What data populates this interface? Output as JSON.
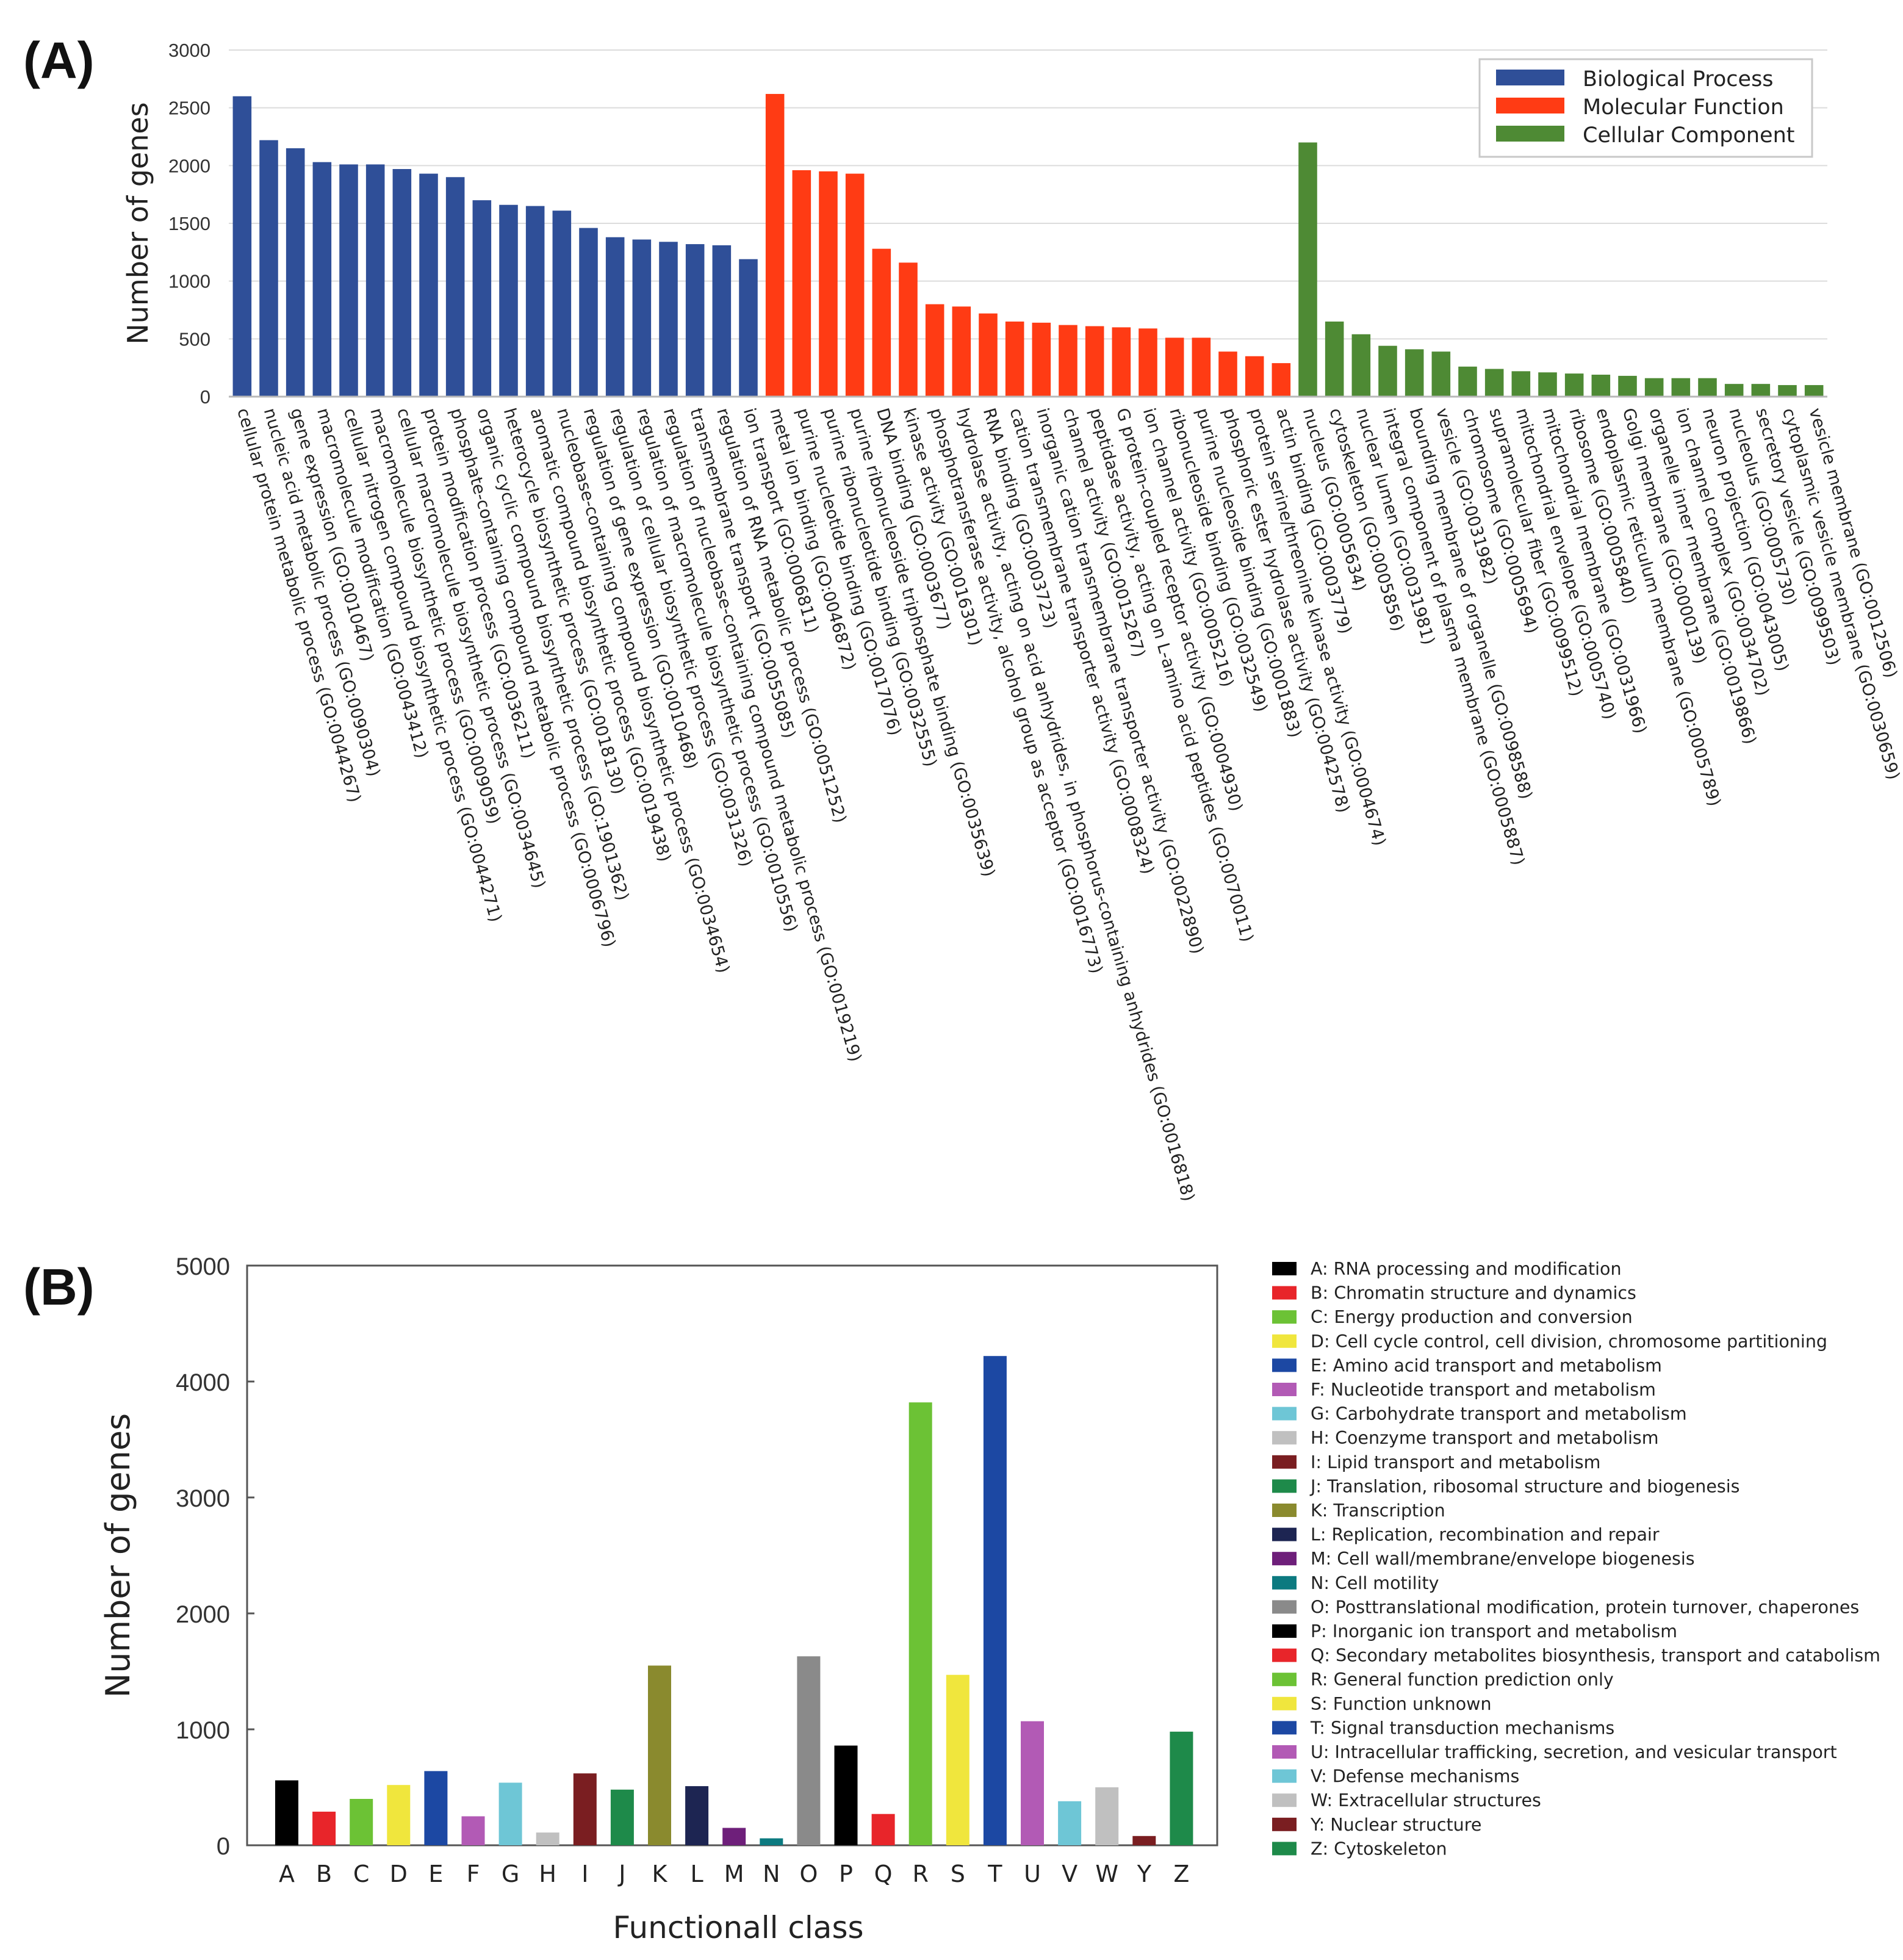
{
  "chart_data": [
    {
      "panel_label": "(A)",
      "type": "bar",
      "title": "",
      "xlabel": "",
      "ylabel": "Number of genes",
      "ylim": [
        0,
        3000
      ],
      "yticks": [
        0,
        500,
        1000,
        1500,
        2000,
        2500,
        3000
      ],
      "grid": true,
      "legend_position": "top-right",
      "colors": {
        "Biological Process": "#2f4f98",
        "Molecular Function": "#ff3b14",
        "Cellular Component": "#4e8a34"
      },
      "series": [
        {
          "name": "Biological Process",
          "categories": [
            "cellular protein metabolic process (GO:0044267)",
            "nucleic acid metabolic process (GO:0090304)",
            "gene expression (GO:0010467)",
            "macromolecule modification (GO:0043412)",
            "cellular nitrogen compound biosynthetic process (GO:0044271)",
            "macromolecule biosynthetic process (GO:0009059)",
            "cellular macromolecule biosynthetic process (GO:0034645)",
            "protein modification process (GO:0036211)",
            "phosphate-containing compound metabolic process (GO:0006796)",
            "organic cyclic compound biosynthetic process (GO:1901362)",
            "heterocycle biosynthetic process (GO:0018130)",
            "aromatic compound biosynthetic process (GO:0019438)",
            "nucleobase-containing compound biosynthetic process (GO:0034654)",
            "regulation of gene expression (GO:0010468)",
            "regulation of cellular biosynthetic process (GO:0031326)",
            "regulation of macromolecule biosynthetic process (GO:0010556)",
            "regulation of nucleobase-containing compound metabolic process (GO:0019219)",
            "transmembrane transport (GO:0055085)",
            "regulation of RNA metabolic process (GO:0051252)",
            "ion transport (GO:0006811)"
          ],
          "values": [
            2600,
            2220,
            2150,
            2030,
            2010,
            2010,
            1970,
            1930,
            1900,
            1700,
            1660,
            1650,
            1610,
            1460,
            1380,
            1360,
            1340,
            1320,
            1310,
            1190
          ]
        },
        {
          "name": "Molecular Function",
          "categories": [
            "metal ion binding (GO:0046872)",
            "purine nucleotide binding (GO:0017076)",
            "purine ribonucleotide binding (GO:0032555)",
            "purine ribonucleoside triphosphate binding (GO:0035639)",
            "DNA binding (GO:0003677)",
            "kinase activity (GO:0016301)",
            "phosphotransferase activity, alcohol group as acceptor (GO:0016773)",
            "hydrolase activity, acting on acid anhydrides, in phosphorus-containing anhydrides (GO:0016818)",
            "RNA binding (GO:0003723)",
            "cation transmembrane transporter activity (GO:0008324)",
            "inorganic cation transmembrane transporter activity (GO:0022890)",
            "channel activity (GO:0015267)",
            "peptidase activity, acting on L-amino acid peptides (GO:0070011)",
            "G protein-coupled receptor activity (GO:0004930)",
            "ion channel activity (GO:0005216)",
            "ribonucleoside binding (GO:0032549)",
            "purine nucleoside binding (GO:0001883)",
            "phosphoric ester hydrolase activity (GO:0042578)",
            "protein serine/threonine kinase activity (GO:0004674)",
            "actin binding (GO:0003779)"
          ],
          "values": [
            2620,
            1960,
            1950,
            1930,
            1280,
            1160,
            800,
            780,
            720,
            650,
            640,
            620,
            610,
            600,
            590,
            510,
            510,
            390,
            350,
            290
          ]
        },
        {
          "name": "Cellular Component",
          "categories": [
            "nucleus (GO:0005634)",
            "cytoskeleton (GO:0005856)",
            "nuclear lumen (GO:0031981)",
            "integral component of plasma membrane (GO:0005887)",
            "bounding membrane of organelle (GO:0098588)",
            "vesicle (GO:0031982)",
            "chromosome (GO:0005694)",
            "supramolecular fiber (GO:0099512)",
            "mitochondrial envelope (GO:0005740)",
            "mitochondrial membrane (GO:0031966)",
            "ribosome (GO:0005840)",
            "endoplasmic reticulum membrane (GO:0005789)",
            "Golgi membrane (GO:0000139)",
            "organelle inner membrane (GO:0019866)",
            "ion channel complex (GO:0034702)",
            "neuron projection (GO:0043005)",
            "nucleolus (GO:0005730)",
            "secretory vesicle (GO:0099503)",
            "cytoplasmic vesicle membrane (GO:0030659)",
            "vesicle membrane (GO:0012506)"
          ],
          "values": [
            2200,
            650,
            540,
            440,
            410,
            390,
            260,
            240,
            220,
            210,
            200,
            190,
            180,
            160,
            160,
            160,
            110,
            110,
            100,
            100
          ]
        }
      ]
    },
    {
      "panel_label": "(B)",
      "type": "bar",
      "title": "",
      "xlabel": "Functionall class",
      "ylabel": "Number of genes",
      "ylim": [
        0,
        5000
      ],
      "yticks": [
        0,
        1000,
        2000,
        3000,
        4000,
        5000
      ],
      "grid": false,
      "legend_position": "right",
      "categories": [
        "A",
        "B",
        "C",
        "D",
        "E",
        "F",
        "G",
        "H",
        "I",
        "J",
        "K",
        "L",
        "M",
        "N",
        "O",
        "P",
        "Q",
        "R",
        "S",
        "T",
        "U",
        "V",
        "W",
        "Y",
        "Z"
      ],
      "values": [
        560,
        290,
        400,
        520,
        640,
        250,
        540,
        110,
        620,
        480,
        1550,
        510,
        150,
        60,
        1630,
        860,
        270,
        3820,
        1470,
        4220,
        1070,
        380,
        500,
        80,
        980
      ],
      "colors": [
        "#000000",
        "#e8252a",
        "#6cc235",
        "#f0e63d",
        "#1c48a3",
        "#b25ab5",
        "#6ec6d6",
        "#c0c0c0",
        "#7a1e21",
        "#1e8a4a",
        "#8a8a2e",
        "#1d2552",
        "#6e1f7a",
        "#0c7a80",
        "#8a8a8a",
        "#000000",
        "#e8252a",
        "#6cc235",
        "#f0e63d",
        "#1c48a3",
        "#b25ab5",
        "#6ec6d6",
        "#c0c0c0",
        "#7a1e21",
        "#1e8a4a"
      ],
      "legend": [
        "A: RNA processing and modification",
        "B: Chromatin structure and dynamics",
        "C: Energy production and conversion",
        "D: Cell cycle control, cell division, chromosome partitioning",
        "E: Amino acid transport and metabolism",
        "F: Nucleotide transport and metabolism",
        "G: Carbohydrate transport and metabolism",
        "H: Coenzyme transport and metabolism",
        "I: Lipid transport and metabolism",
        "J: Translation, ribosomal structure and biogenesis",
        "K: Transcription",
        "L: Replication, recombination and repair",
        "M: Cell wall/membrane/envelope biogenesis",
        "N: Cell motility",
        "O: Posttranslational modification, protein turnover, chaperones",
        "P: Inorganic ion transport and metabolism",
        "Q: Secondary metabolites biosynthesis, transport and catabolism",
        "R: General function prediction only",
        "S: Function unknown",
        "T: Signal transduction mechanisms",
        "U: Intracellular trafficking, secretion, and vesicular transport",
        "V: Defense mechanisms",
        "W: Extracellular structures",
        "Y: Nuclear structure",
        "Z: Cytoskeleton"
      ]
    }
  ]
}
